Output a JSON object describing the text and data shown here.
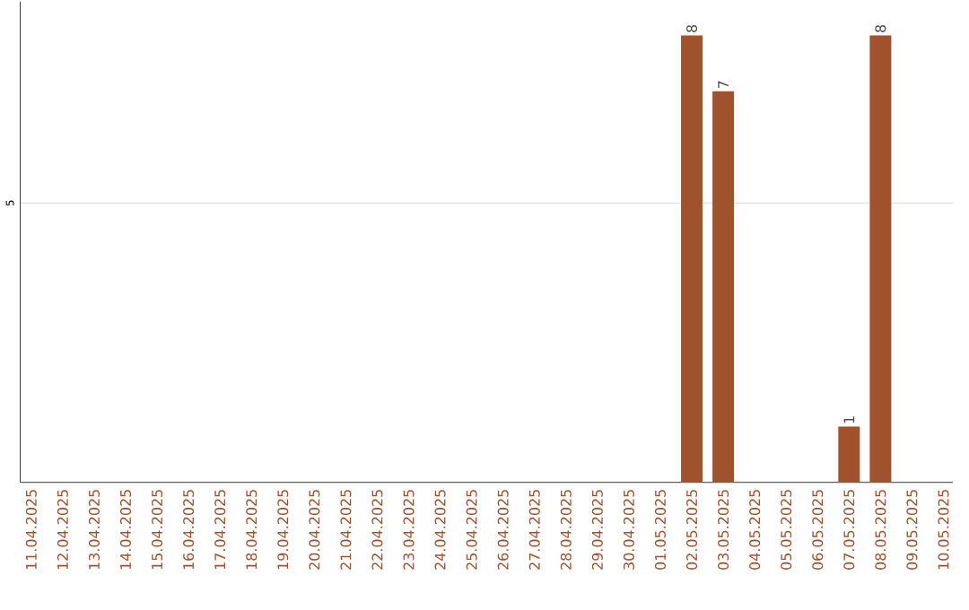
{
  "chart_data": {
    "type": "bar",
    "categories": [
      "11.04.2025",
      "12.04.2025",
      "13.04.2025",
      "14.04.2025",
      "15.04.2025",
      "16.04.2025",
      "17.04.2025",
      "18.04.2025",
      "19.04.2025",
      "20.04.2025",
      "21.04.2025",
      "22.04.2025",
      "23.04.2025",
      "24.04.2025",
      "25.04.2025",
      "26.04.2025",
      "27.04.2025",
      "28.04.2025",
      "29.04.2025",
      "30.04.2025",
      "01.05.2025",
      "02.05.2025",
      "03.05.2025",
      "04.05.2025",
      "05.05.2025",
      "06.05.2025",
      "07.05.2025",
      "08.05.2025",
      "09.05.2025",
      "10.05.2025"
    ],
    "values": [
      null,
      null,
      null,
      null,
      null,
      null,
      null,
      null,
      null,
      null,
      null,
      null,
      null,
      null,
      null,
      null,
      null,
      null,
      null,
      null,
      null,
      8,
      7,
      null,
      null,
      null,
      1,
      8,
      null,
      null
    ],
    "color": "#a0522d",
    "ylim": [
      0,
      8.6
    ],
    "yticks": [
      5
    ],
    "grid": "y",
    "data_labels": true
  }
}
